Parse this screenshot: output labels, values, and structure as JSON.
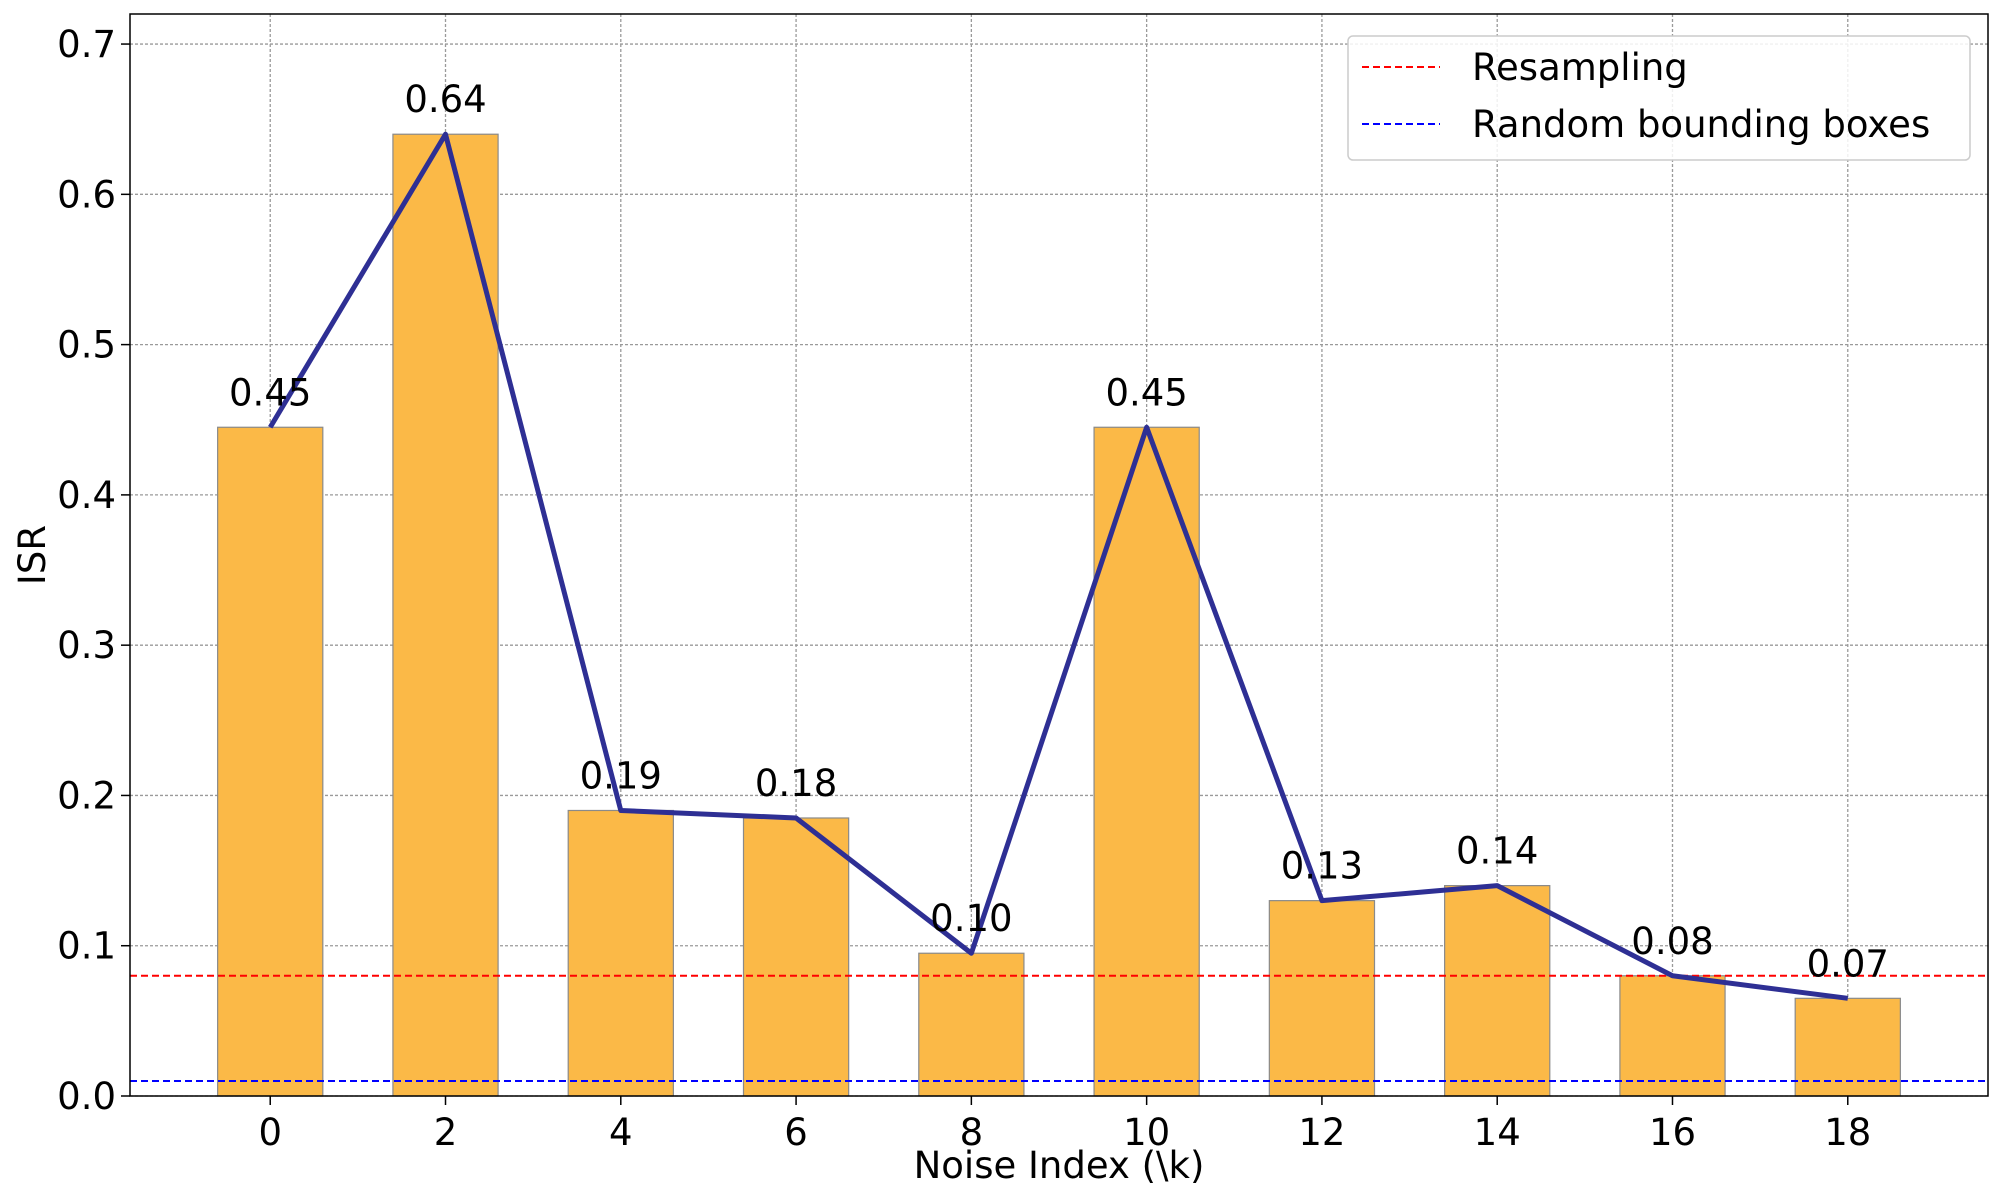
{
  "chart_data": {
    "type": "bar",
    "title": "",
    "xlabel": "Noise Index (\\k)",
    "ylabel": "ISR",
    "categories": [
      "0",
      "2",
      "4",
      "6",
      "8",
      "10",
      "12",
      "14",
      "16",
      "18"
    ],
    "x": [
      0,
      2,
      4,
      6,
      8,
      10,
      12,
      14,
      16,
      18
    ],
    "values": [
      0.445,
      0.64,
      0.19,
      0.185,
      0.095,
      0.445,
      0.13,
      0.14,
      0.08,
      0.065
    ],
    "value_labels": [
      "0.45",
      "0.64",
      "0.19",
      "0.18",
      "0.10",
      "0.45",
      "0.13",
      "0.14",
      "0.08",
      "0.07"
    ],
    "line_values": [
      0.445,
      0.64,
      0.19,
      0.185,
      0.095,
      0.445,
      0.13,
      0.14,
      0.08,
      0.065
    ],
    "xlim": [
      -1.6,
      19.6
    ],
    "ylim": [
      0,
      0.72
    ],
    "yticks": [
      0.0,
      0.1,
      0.2,
      0.3,
      0.4,
      0.5,
      0.6,
      0.7
    ],
    "ytick_labels": [
      "0.0",
      "0.1",
      "0.2",
      "0.3",
      "0.4",
      "0.5",
      "0.6",
      "0.7"
    ],
    "grid": true,
    "reference_lines": [
      {
        "name": "Resampling",
        "value": 0.08,
        "color": "#ff0000",
        "style": "dashed"
      },
      {
        "name": "Random bounding boxes",
        "value": 0.01,
        "color": "#0000ff",
        "style": "dashed"
      }
    ],
    "legend": {
      "position": "top-right",
      "entries": [
        "Resampling",
        "Random bounding boxes"
      ]
    },
    "colors": {
      "bar_fill": "#fbb947",
      "bar_edge": "#8a8a8a",
      "line": "#2e2f94"
    }
  }
}
